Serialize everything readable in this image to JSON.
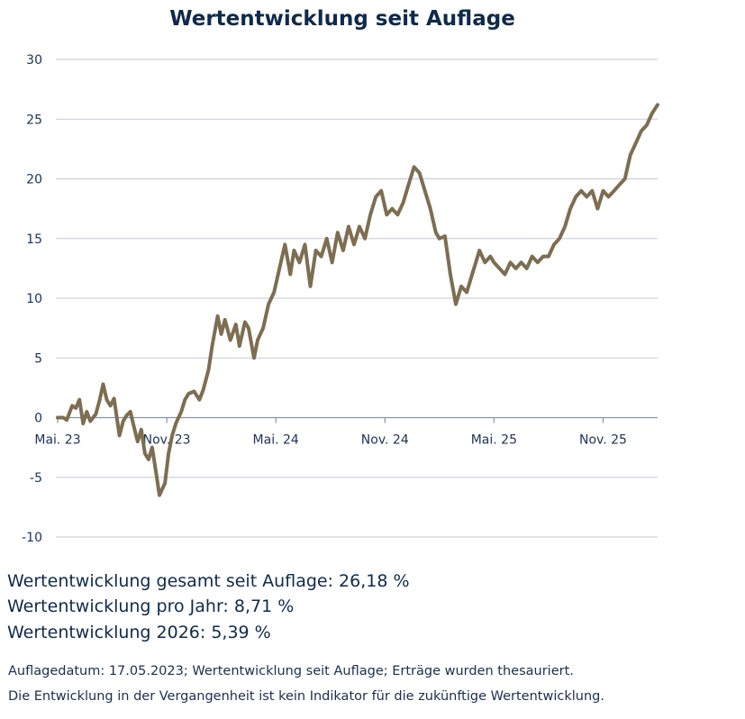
{
  "chart_data": {
    "type": "line",
    "title": "Wertentwicklung seit Auflage",
    "xlabel": "",
    "ylabel": "",
    "ylim": [
      -10,
      30
    ],
    "yticks": [
      30,
      25,
      20,
      15,
      10,
      5,
      0,
      -5,
      -10
    ],
    "xlim": [
      0,
      33
    ],
    "xticks": [
      {
        "label": "Mai. 23",
        "x": 0
      },
      {
        "label": "Nov. 23",
        "x": 6
      },
      {
        "label": "Mai. 24",
        "x": 12
      },
      {
        "label": "Nov. 24",
        "x": 18
      },
      {
        "label": "Mai. 25",
        "x": 24
      },
      {
        "label": "Nov. 25",
        "x": 30
      }
    ],
    "grid": true,
    "legend": "none",
    "series": [
      {
        "name": "Wertentwicklung",
        "color": "#7d6e52",
        "x": [
          0,
          0.3,
          0.5,
          0.8,
          1.0,
          1.2,
          1.4,
          1.6,
          1.8,
          2.1,
          2.3,
          2.5,
          2.7,
          2.9,
          3.1,
          3.4,
          3.6,
          3.8,
          4.0,
          4.2,
          4.4,
          4.6,
          4.8,
          5.0,
          5.2,
          5.4,
          5.6,
          5.9,
          6.1,
          6.3,
          6.5,
          6.8,
          7.0,
          7.2,
          7.5,
          7.8,
          8.0,
          8.3,
          8.5,
          8.8,
          9.0,
          9.2,
          9.5,
          9.8,
          10.0,
          10.3,
          10.5,
          10.8,
          11.0,
          11.3,
          11.6,
          11.9,
          12.2,
          12.5,
          12.8,
          13.0,
          13.3,
          13.6,
          13.9,
          14.2,
          14.5,
          14.8,
          15.1,
          15.4,
          15.7,
          16.0,
          16.3,
          16.6,
          16.9,
          17.2,
          17.5,
          17.8,
          18.1,
          18.4,
          18.7,
          19.0,
          19.3,
          19.6,
          19.9,
          20.2,
          20.5,
          20.8,
          21.0,
          21.3,
          21.6,
          21.9,
          22.2,
          22.5,
          22.8,
          23.0,
          23.2,
          23.5,
          23.8,
          24.0,
          24.3,
          24.6,
          24.9,
          25.2,
          25.5,
          25.8,
          26.1,
          26.4,
          26.7,
          27.0,
          27.3,
          27.6,
          27.9,
          28.2,
          28.5,
          28.8,
          29.1,
          29.4,
          29.7,
          30.0,
          30.3,
          30.6,
          30.9,
          31.2,
          31.5,
          31.8,
          32.1,
          32.4,
          32.7,
          33.0
        ],
        "values": [
          0,
          0,
          -0.2,
          1.0,
          0.8,
          1.5,
          -0.5,
          0.5,
          -0.3,
          0.3,
          1.4,
          2.8,
          1.5,
          1.0,
          1.6,
          -1.5,
          -0.3,
          0.2,
          0.5,
          -0.8,
          -2.0,
          -1.0,
          -3.0,
          -3.5,
          -2.5,
          -4.5,
          -6.5,
          -5.5,
          -3.0,
          -1.5,
          -0.5,
          0.5,
          1.5,
          2.0,
          2.2,
          1.5,
          2.3,
          4.0,
          6.0,
          8.5,
          7.0,
          8.2,
          6.5,
          7.8,
          6.0,
          8.0,
          7.5,
          5.0,
          6.5,
          7.5,
          9.5,
          10.5,
          12.5,
          14.5,
          12.0,
          14.0,
          13.0,
          14.5,
          11.0,
          14.0,
          13.5,
          15.0,
          13.0,
          15.5,
          14.0,
          16.0,
          14.5,
          16.0,
          15.0,
          17.0,
          18.5,
          19.0,
          17.0,
          17.5,
          17.0,
          18.0,
          19.5,
          21.0,
          20.5,
          19.0,
          17.5,
          15.5,
          15.0,
          15.2,
          12.0,
          9.5,
          11.0,
          10.5,
          12.0,
          13.0,
          14.0,
          13.0,
          13.5,
          13.0,
          12.5,
          12.0,
          13.0,
          12.5,
          13.0,
          12.5,
          13.5,
          13.0,
          13.5,
          13.5,
          14.5,
          15.0,
          16.0,
          17.5,
          18.5,
          19.0,
          18.5,
          19.0,
          17.5,
          19.0,
          18.5,
          19.0,
          19.5,
          20.0,
          22.0,
          23.0,
          24.0,
          24.5,
          25.5,
          26.2
        ]
      }
    ]
  },
  "stats": {
    "total": "Wertentwicklung gesamt seit Auflage: 26,18 %",
    "per_year": "Wertentwicklung pro Jahr: 8,71 %",
    "ytd": "Wertentwicklung 2026: 5,39 %"
  },
  "footnote": {
    "line1": "Auflagedatum: 17.05.2023; Wertentwicklung seit Auflage; Erträge wurden thesauriert.",
    "line2": "Die Entwicklung in der Vergangenheit ist kein Indikator für die zukünftige Wertentwicklung."
  },
  "colors": {
    "title": "#0f2a4a",
    "grid": "#c5c9d6",
    "axis": "#8a93a8",
    "line": "#7d6e52"
  }
}
